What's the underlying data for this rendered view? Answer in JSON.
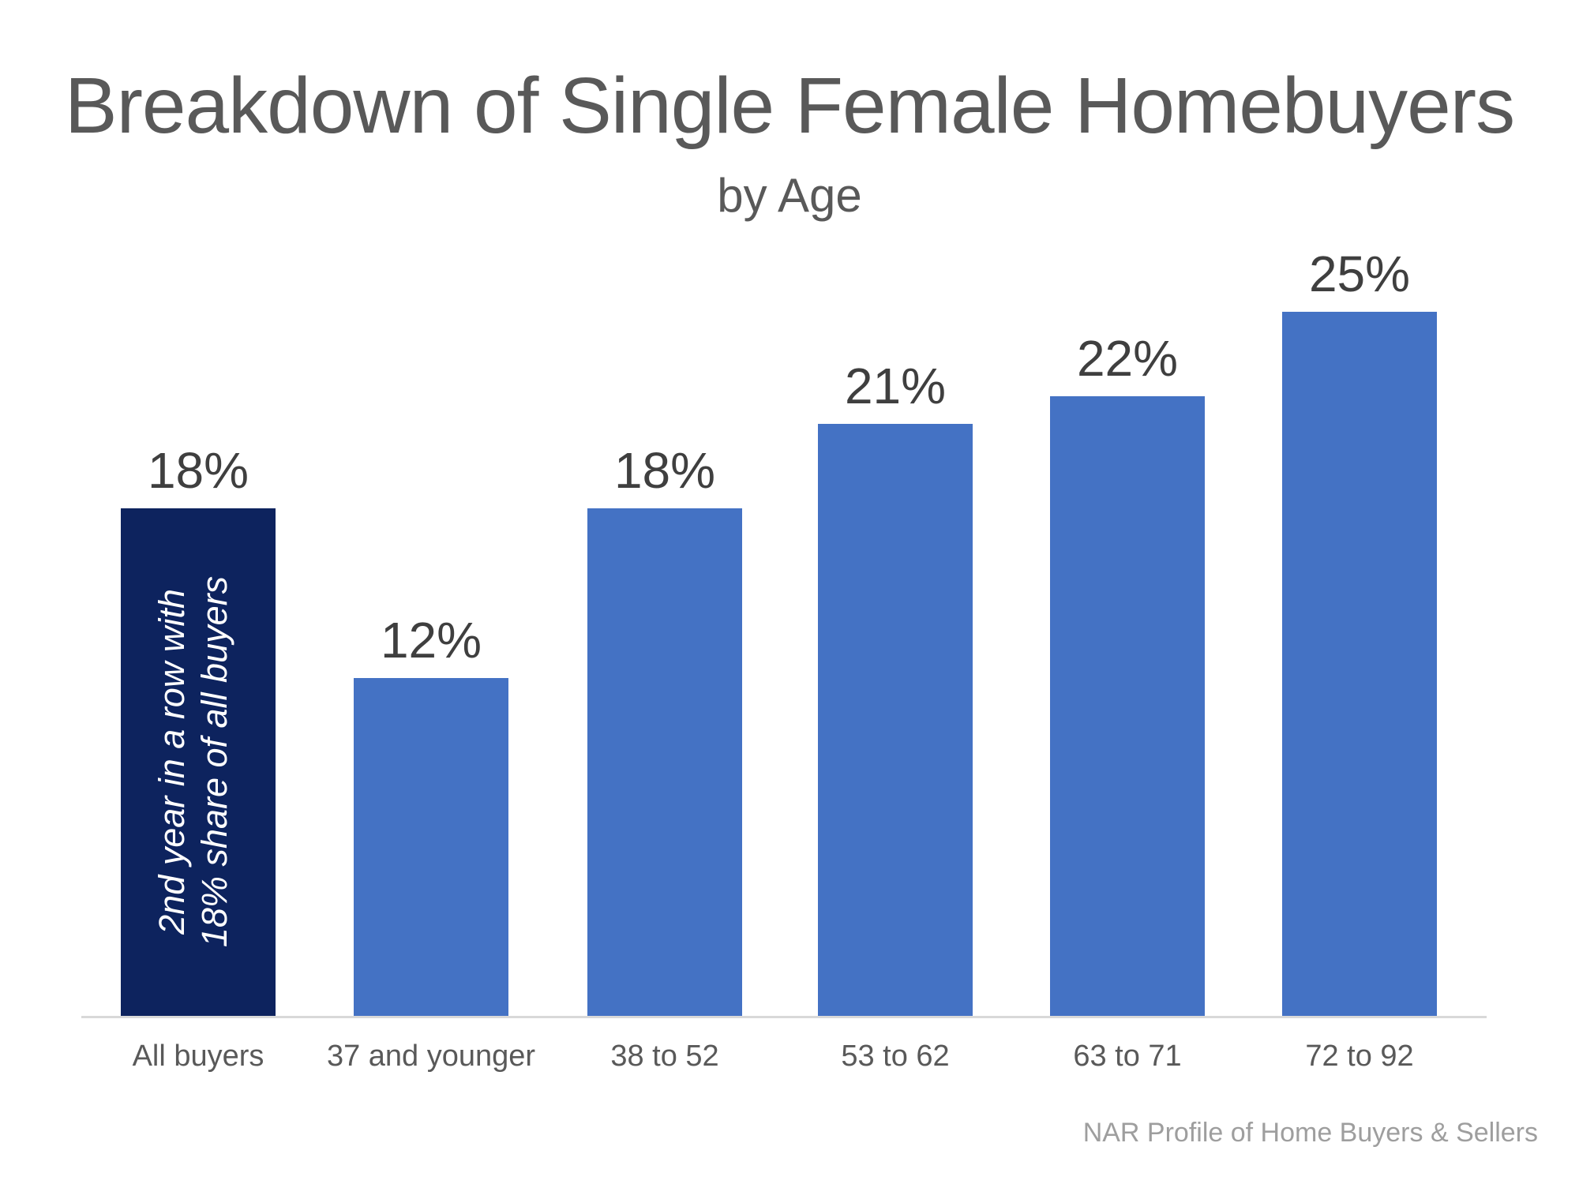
{
  "chart_data": {
    "type": "bar",
    "title": "Breakdown of Single Female Homebuyers",
    "subtitle": "by Age",
    "categories": [
      "All buyers",
      "37 and younger",
      "38 to 52",
      "53 to 62",
      "63 to 71",
      "72 to 92"
    ],
    "values": [
      18,
      12,
      18,
      21,
      22,
      25
    ],
    "value_labels": [
      "18%",
      "12%",
      "18%",
      "21%",
      "22%",
      "25%"
    ],
    "ylim": [
      0,
      27
    ],
    "grid": false,
    "legend": "none",
    "bar_color_default": "#4472C4",
    "bar_color_highlight": "#0D235E",
    "highlighted_category": "All buyers",
    "annotation": {
      "lines": [
        "2nd year in a row with",
        "18% share of all buyers"
      ],
      "color": "#FFFFFF",
      "target": "All buyers"
    },
    "source": "NAR Profile of Home Buyers & Sellers",
    "colors": {
      "title": "#595959",
      "value_label": "#3F3F3F",
      "category_label": "#595959",
      "source": "#9E9E9E",
      "axis_line": "#D9D9D9",
      "background": "#FFFFFF"
    }
  }
}
